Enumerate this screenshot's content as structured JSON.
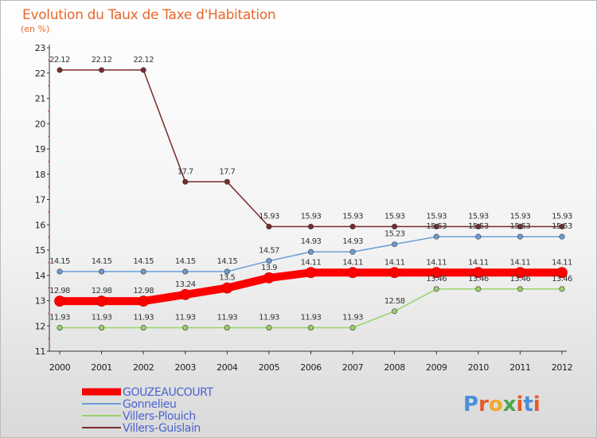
{
  "chart_data": {
    "type": "line",
    "title": "Evolution du Taux de Taxe d'Habitation",
    "subtitle": "(en %)",
    "x": [
      "2000",
      "2001",
      "2002",
      "2003",
      "2004",
      "2005",
      "2006",
      "2007",
      "2008",
      "2009",
      "2010",
      "2011",
      "2012"
    ],
    "ylim": [
      11,
      23
    ],
    "yticks": [
      "11",
      "12",
      "13",
      "14",
      "15",
      "16",
      "17",
      "18",
      "19",
      "20",
      "21",
      "22",
      "23"
    ],
    "grid": false,
    "legend_position": "bottom-left",
    "series": [
      {
        "name": "GOUZEAUCOURT",
        "color": "#ff0000",
        "style": "thick",
        "values": [
          12.98,
          12.98,
          12.98,
          13.24,
          13.5,
          13.9,
          14.11,
          14.11,
          14.11,
          14.11,
          14.11,
          14.11,
          14.11
        ],
        "labels": [
          "12.98",
          "12.98",
          "12.98",
          "13.24",
          "13.5",
          "13.9",
          "14.11",
          "14.11",
          "14.11",
          "14.11",
          "14.11",
          "14.11",
          "14.11"
        ]
      },
      {
        "name": "Gonnelieu",
        "color": "#6a9ed4",
        "style": "thin",
        "values": [
          14.15,
          14.15,
          14.15,
          14.15,
          14.15,
          14.57,
          14.93,
          14.93,
          15.23,
          15.53,
          15.53,
          15.53,
          15.53
        ],
        "labels": [
          "14.15",
          "14.15",
          "14.15",
          "14.15",
          "14.15",
          "14.57",
          "14.93",
          "14.93",
          "15.23",
          "15.53",
          "15.53",
          "15.53",
          "15.53"
        ]
      },
      {
        "name": "Villers-Plouich",
        "color": "#9ad26a",
        "style": "thin",
        "values": [
          11.93,
          11.93,
          11.93,
          11.93,
          11.93,
          11.93,
          11.93,
          11.93,
          12.58,
          13.46,
          13.46,
          13.46,
          13.46
        ],
        "labels": [
          "11.93",
          "11.93",
          "11.93",
          "11.93",
          "11.93",
          "11.93",
          "11.93",
          "11.93",
          "12.58",
          "13.46",
          "13.46",
          "13.46",
          "13.46"
        ]
      },
      {
        "name": "Villers-Guislain",
        "color": "#7a2b2b",
        "style": "thin",
        "values": [
          22.12,
          22.12,
          22.12,
          17.7,
          17.7,
          15.93,
          15.93,
          15.93,
          15.93,
          15.93,
          15.93,
          15.93,
          15.93
        ],
        "labels": [
          "22.12",
          "22.12",
          "22.12",
          "17.7",
          "17.7",
          "15.93",
          "15.93",
          "15.93",
          "15.93",
          "15.93",
          "15.93",
          "15.93",
          "15.93"
        ]
      }
    ]
  },
  "logo": {
    "text": "Proxiti",
    "letters": [
      {
        "ch": "P",
        "color": "#4a8fd6"
      },
      {
        "ch": "r",
        "color": "#e35b2a"
      },
      {
        "ch": "o",
        "color": "#f1a82a"
      },
      {
        "ch": "x",
        "color": "#4aa64a"
      },
      {
        "ch": "i",
        "color": "#e35b2a"
      },
      {
        "ch": "t",
        "color": "#4a8fd6"
      },
      {
        "ch": "i",
        "color": "#e35b2a"
      }
    ]
  },
  "colors": {
    "background_top": "#ffffff",
    "background_bottom": "#d9d9d9",
    "title": "#e8662a",
    "axis": "#333333",
    "legend_text": "#4a63d0"
  }
}
